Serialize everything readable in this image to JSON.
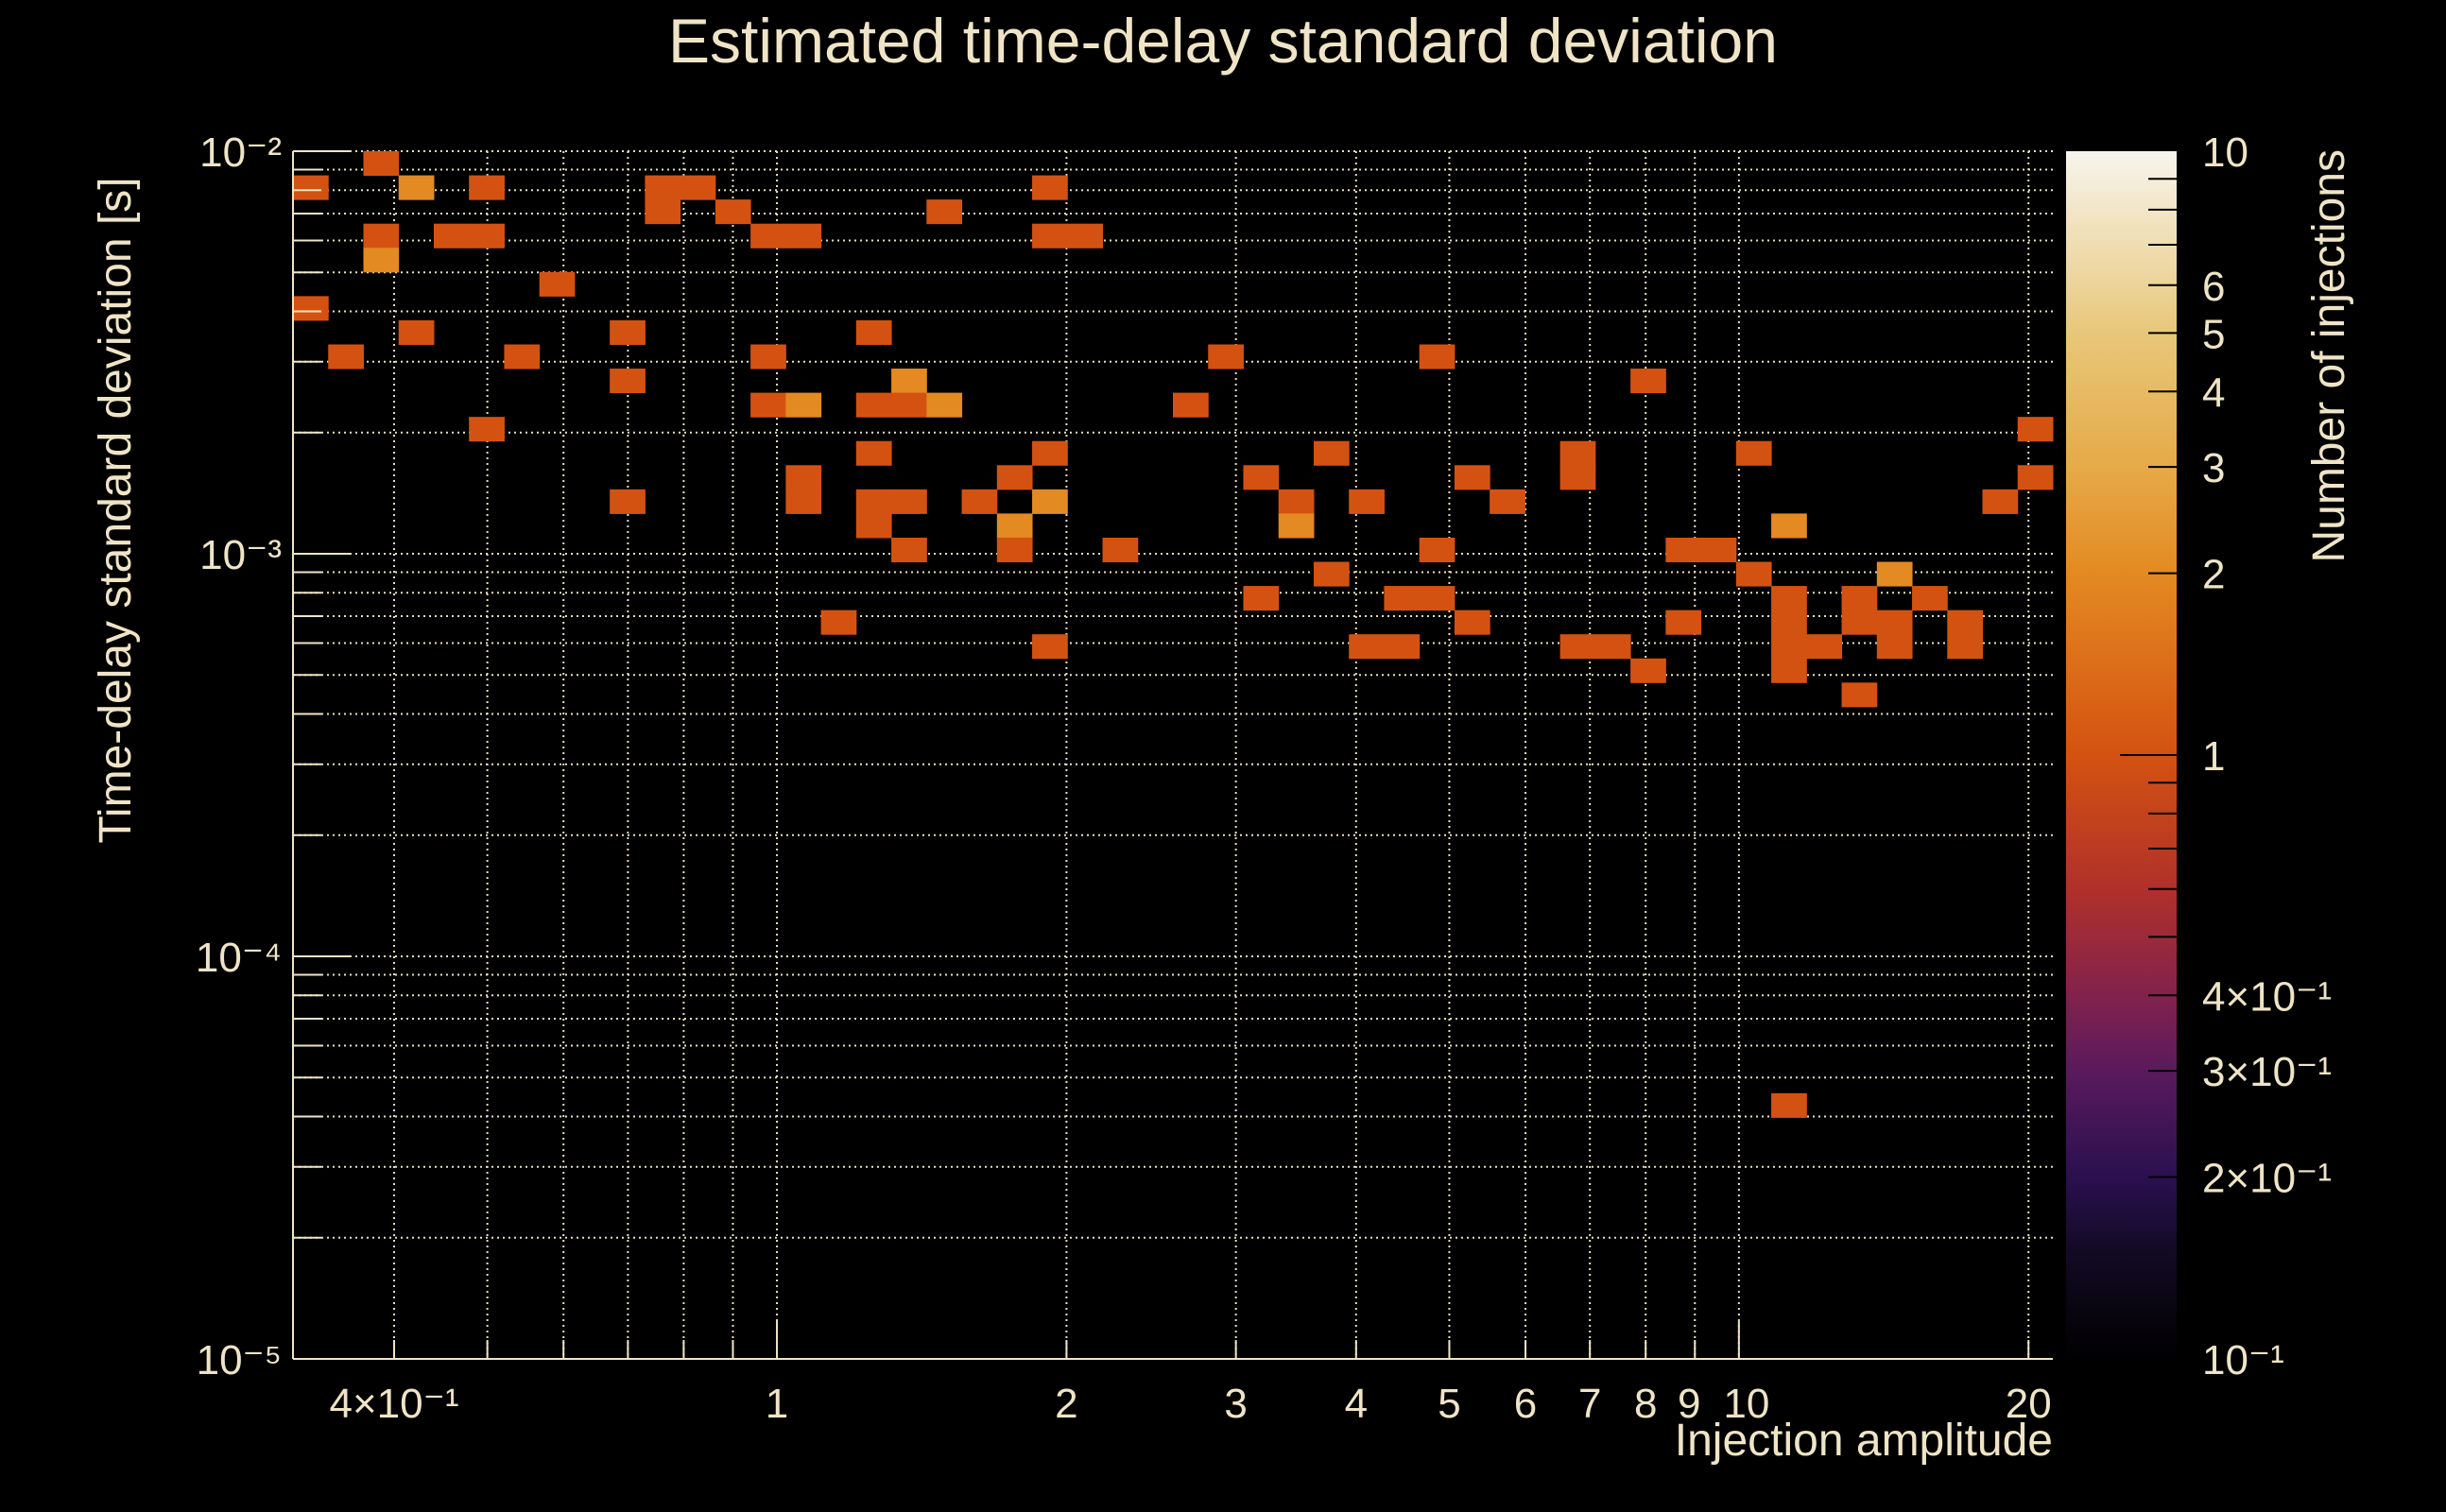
{
  "chart_data": {
    "type": "heatmap",
    "title": "Estimated time-delay standard deviation",
    "xlabel": "Injection amplitude",
    "ylabel": "Time-delay standard deviation [s]",
    "zlabel": "Number of injections",
    "x_scale": "log",
    "y_scale": "log",
    "z_scale": "log",
    "xlim": [
      0.314,
      21.2
    ],
    "ylim": [
      1e-05,
      0.01
    ],
    "zlim": [
      0.1,
      10
    ],
    "x_bins": 50,
    "y_bins": 50,
    "grid": true,
    "x_ticks": [
      {
        "value": 0.4,
        "label": "4×10⁻¹"
      },
      {
        "value": 1,
        "label": "1"
      },
      {
        "value": 2,
        "label": "2"
      },
      {
        "value": 3,
        "label": "3"
      },
      {
        "value": 4,
        "label": "4"
      },
      {
        "value": 5,
        "label": "5"
      },
      {
        "value": 6,
        "label": "6"
      },
      {
        "value": 7,
        "label": "7"
      },
      {
        "value": 8,
        "label": "8"
      },
      {
        "value": 9,
        "label": "9"
      },
      {
        "value": 10,
        "label": "10"
      },
      {
        "value": 20,
        "label": "20"
      }
    ],
    "y_ticks": [
      {
        "value": 0.01,
        "label": "10⁻²"
      },
      {
        "value": 0.001,
        "label": "10⁻³"
      },
      {
        "value": 0.0001,
        "label": "10⁻⁴"
      },
      {
        "value": 1e-05,
        "label": "10⁻⁵"
      }
    ],
    "z_ticks": [
      {
        "value": 10,
        "label": "10"
      },
      {
        "value": 6,
        "label": "6"
      },
      {
        "value": 5,
        "label": "5"
      },
      {
        "value": 4,
        "label": "4"
      },
      {
        "value": 3,
        "label": "3"
      },
      {
        "value": 2,
        "label": "2"
      },
      {
        "value": 1,
        "label": "1"
      },
      {
        "value": 0.4,
        "label": "4×10⁻¹"
      },
      {
        "value": 0.3,
        "label": "3×10⁻¹"
      },
      {
        "value": 0.2,
        "label": "2×10⁻¹"
      },
      {
        "value": 0.1,
        "label": "10⁻¹"
      }
    ],
    "colormap": [
      {
        "value": 0.1,
        "color": "#000000"
      },
      {
        "value": 0.15,
        "color": "#120a24"
      },
      {
        "value": 0.2,
        "color": "#2a1050"
      },
      {
        "value": 0.3,
        "color": "#5a1a5c"
      },
      {
        "value": 0.4,
        "color": "#82224c"
      },
      {
        "value": 0.6,
        "color": "#b0302a"
      },
      {
        "value": 1,
        "color": "#d45211"
      },
      {
        "value": 2,
        "color": "#e38a22"
      },
      {
        "value": 3,
        "color": "#e6aa48"
      },
      {
        "value": 5,
        "color": "#e8c77a"
      },
      {
        "value": 10,
        "color": "#f7f5ee"
      }
    ],
    "cells_note": "x_bin, y_bin (0 = lowest), count",
    "cells": [
      [
        2,
        49,
        1
      ],
      [
        0,
        48,
        1
      ],
      [
        3,
        48,
        2
      ],
      [
        5,
        48,
        1
      ],
      [
        10,
        48,
        1
      ],
      [
        11,
        48,
        1
      ],
      [
        21,
        48,
        1
      ],
      [
        10,
        47,
        1
      ],
      [
        12,
        47,
        1
      ],
      [
        18,
        47,
        1
      ],
      [
        2,
        46,
        1
      ],
      [
        4,
        46,
        1
      ],
      [
        5,
        46,
        1
      ],
      [
        13,
        46,
        1
      ],
      [
        14,
        46,
        1
      ],
      [
        21,
        46,
        1
      ],
      [
        22,
        46,
        1
      ],
      [
        2,
        45,
        2
      ],
      [
        7,
        44,
        1
      ],
      [
        0,
        43,
        1
      ],
      [
        3,
        42,
        1
      ],
      [
        9,
        42,
        1
      ],
      [
        16,
        42,
        1
      ],
      [
        1,
        41,
        1
      ],
      [
        6,
        41,
        1
      ],
      [
        13,
        41,
        1
      ],
      [
        26,
        41,
        1
      ],
      [
        32,
        41,
        1
      ],
      [
        9,
        40,
        1
      ],
      [
        17,
        40,
        2
      ],
      [
        38,
        40,
        1
      ],
      [
        13,
        39,
        1
      ],
      [
        14,
        39,
        2
      ],
      [
        16,
        39,
        1
      ],
      [
        17,
        39,
        1
      ],
      [
        18,
        39,
        2
      ],
      [
        25,
        39,
        1
      ],
      [
        5,
        38,
        1
      ],
      [
        49,
        38,
        1
      ],
      [
        16,
        37,
        1
      ],
      [
        21,
        37,
        1
      ],
      [
        29,
        37,
        1
      ],
      [
        36,
        37,
        1
      ],
      [
        41,
        37,
        1
      ],
      [
        14,
        36,
        1
      ],
      [
        20,
        36,
        1
      ],
      [
        27,
        36,
        1
      ],
      [
        33,
        36,
        1
      ],
      [
        36,
        36,
        1
      ],
      [
        49,
        36,
        1
      ],
      [
        9,
        35,
        1
      ],
      [
        14,
        35,
        1
      ],
      [
        16,
        35,
        1
      ],
      [
        17,
        35,
        1
      ],
      [
        19,
        35,
        1
      ],
      [
        21,
        35,
        2
      ],
      [
        28,
        35,
        1
      ],
      [
        30,
        35,
        1
      ],
      [
        34,
        35,
        1
      ],
      [
        48,
        35,
        1
      ],
      [
        16,
        34,
        1
      ],
      [
        20,
        34,
        2
      ],
      [
        28,
        34,
        2
      ],
      [
        42,
        34,
        2
      ],
      [
        17,
        33,
        1
      ],
      [
        20,
        33,
        1
      ],
      [
        23,
        33,
        1
      ],
      [
        32,
        33,
        1
      ],
      [
        39,
        33,
        1
      ],
      [
        40,
        33,
        1
      ],
      [
        29,
        32,
        1
      ],
      [
        41,
        32,
        1
      ],
      [
        45,
        32,
        2
      ],
      [
        27,
        31,
        1
      ],
      [
        31,
        31,
        1
      ],
      [
        32,
        31,
        1
      ],
      [
        42,
        31,
        1
      ],
      [
        44,
        31,
        1
      ],
      [
        46,
        31,
        1
      ],
      [
        15,
        30,
        1
      ],
      [
        33,
        30,
        1
      ],
      [
        39,
        30,
        1
      ],
      [
        42,
        30,
        1
      ],
      [
        44,
        30,
        1
      ],
      [
        45,
        30,
        1
      ],
      [
        47,
        30,
        1
      ],
      [
        21,
        29,
        1
      ],
      [
        30,
        29,
        1
      ],
      [
        31,
        29,
        1
      ],
      [
        36,
        29,
        1
      ],
      [
        37,
        29,
        1
      ],
      [
        42,
        29,
        1
      ],
      [
        43,
        29,
        1
      ],
      [
        45,
        29,
        1
      ],
      [
        47,
        29,
        1
      ],
      [
        38,
        28,
        1
      ],
      [
        42,
        28,
        1
      ],
      [
        44,
        27,
        1
      ],
      [
        42,
        10,
        1
      ]
    ]
  }
}
